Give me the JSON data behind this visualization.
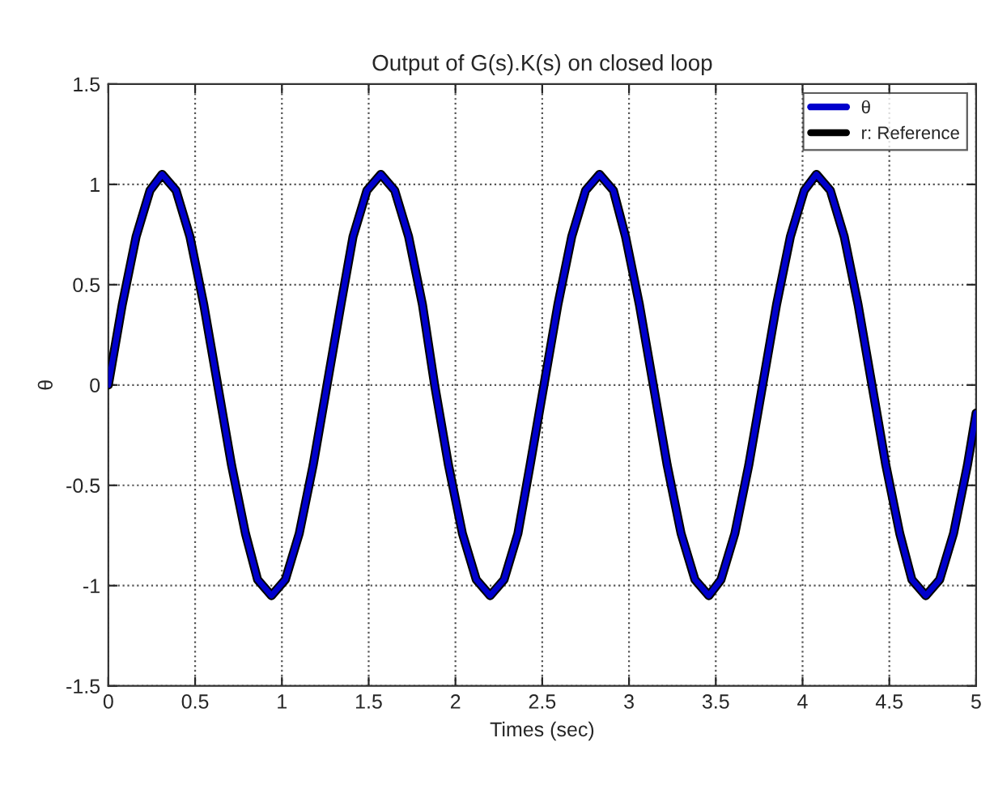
{
  "chart_data": {
    "type": "line",
    "title": "Output of G(s).K(s) on closed loop",
    "xlabel": "Times (sec)",
    "ylabel": "θ",
    "x": [
      0,
      0.08,
      0.16,
      0.24,
      0.31,
      0.39,
      0.47,
      0.55,
      0.63,
      0.71,
      0.79,
      0.86,
      0.94,
      1.02,
      1.1,
      1.18,
      1.26,
      1.34,
      1.41,
      1.49,
      1.57,
      1.65,
      1.73,
      1.81,
      1.88,
      1.96,
      2.04,
      2.12,
      2.2,
      2.28,
      2.36,
      2.43,
      2.51,
      2.59,
      2.67,
      2.75,
      2.83,
      2.91,
      2.98,
      3.06,
      3.14,
      3.22,
      3.3,
      3.38,
      3.46,
      3.53,
      3.61,
      3.69,
      3.77,
      3.85,
      3.93,
      4.01,
      4.08,
      4.16,
      4.24,
      4.32,
      4.4,
      4.48,
      4.56,
      4.63,
      4.71,
      4.79,
      4.87,
      4.95,
      5.0
    ],
    "series": [
      {
        "name": "θ",
        "color": "#0000cc",
        "values": [
          0,
          0.4,
          0.74,
          0.97,
          1.05,
          0.97,
          0.74,
          0.4,
          0,
          -0.4,
          -0.74,
          -0.97,
          -1.05,
          -0.97,
          -0.74,
          -0.4,
          0,
          0.4,
          0.74,
          0.97,
          1.05,
          0.97,
          0.74,
          0.4,
          0,
          -0.4,
          -0.74,
          -0.97,
          -1.05,
          -0.97,
          -0.74,
          -0.4,
          0,
          0.4,
          0.74,
          0.97,
          1.05,
          0.97,
          0.74,
          0.4,
          0,
          -0.4,
          -0.74,
          -0.97,
          -1.05,
          -0.97,
          -0.74,
          -0.4,
          0,
          0.4,
          0.74,
          0.97,
          1.05,
          0.97,
          0.74,
          0.4,
          0,
          -0.4,
          -0.74,
          -0.97,
          -1.05,
          -0.97,
          -0.74,
          -0.4,
          -0.14
        ]
      },
      {
        "name": "r: Reference",
        "color": "#000000",
        "values": [
          0,
          0.4,
          0.74,
          0.97,
          1.05,
          0.97,
          0.74,
          0.4,
          0,
          -0.4,
          -0.74,
          -0.97,
          -1.05,
          -0.97,
          -0.74,
          -0.4,
          0,
          0.4,
          0.74,
          0.97,
          1.05,
          0.97,
          0.74,
          0.4,
          0,
          -0.4,
          -0.74,
          -0.97,
          -1.05,
          -0.97,
          -0.74,
          -0.4,
          0,
          0.4,
          0.74,
          0.97,
          1.05,
          0.97,
          0.74,
          0.4,
          0,
          -0.4,
          -0.74,
          -0.97,
          -1.05,
          -0.97,
          -0.74,
          -0.4,
          0,
          0.4,
          0.74,
          0.97,
          1.05,
          0.97,
          0.74,
          0.4,
          0,
          -0.4,
          -0.74,
          -0.97,
          -1.05,
          -0.97,
          -0.74,
          -0.4,
          -0.14
        ]
      }
    ],
    "xlim": [
      0,
      5
    ],
    "ylim": [
      -1.5,
      1.5
    ],
    "xticks": [
      0,
      0.5,
      1,
      1.5,
      2,
      2.5,
      3,
      3.5,
      4,
      4.5,
      5
    ],
    "yticks": [
      -1.5,
      -1,
      -0.5,
      0,
      0.5,
      1,
      1.5
    ],
    "grid": true,
    "legend": "top right",
    "line_style": "solid"
  }
}
